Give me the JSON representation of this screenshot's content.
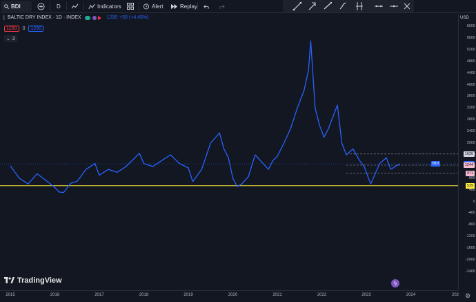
{
  "toolbar": {
    "symbol": "BDI",
    "interval": "D",
    "indicators_label": "Indicators",
    "alert_label": "Alert",
    "replay_label": "Replay"
  },
  "legend": {
    "title": "BALTIC DRY INDEX · 1D · INDEX",
    "last_value": "1290",
    "change": "+55 (+4.45%)",
    "bid": "1290",
    "spread": "0",
    "ask": "1290",
    "collapse_count": "2"
  },
  "axis": {
    "currency": "USD",
    "y_ticks": [
      "6000",
      "5600",
      "5200",
      "4800",
      "4400",
      "4000",
      "3600",
      "3200",
      "2800",
      "2400",
      "2000",
      "1600",
      "1200",
      "800",
      "400",
      "0",
      "-400",
      "-800",
      "-1200",
      "-1600",
      "-2000",
      "-2400"
    ],
    "x_ticks": [
      "2015",
      "2016",
      "2017",
      "2018",
      "2019",
      "2020",
      "2021",
      "2022",
      "2023",
      "2024",
      "202"
    ]
  },
  "price_labels": {
    "upper": "1626",
    "symbol_tag": "BDI",
    "last": "1290",
    "mid": "1244",
    "lower": "971",
    "support": "539"
  },
  "watermark": "TradingView",
  "colors": {
    "line": "#2962ff",
    "support": "#ffeb3b",
    "bg": "#131722"
  },
  "chart_data": {
    "type": "line",
    "title": "BALTIC DRY INDEX · 1D · INDEX",
    "ylim": [
      -2400,
      6000
    ],
    "series": [
      {
        "name": "BDI",
        "x": [
          2015.0,
          2015.2,
          2015.4,
          2015.6,
          2015.8,
          2016.0,
          2016.1,
          2016.2,
          2016.35,
          2016.5,
          2016.7,
          2016.9,
          2017.0,
          2017.2,
          2017.4,
          2017.6,
          2017.8,
          2017.9,
          2018.0,
          2018.2,
          2018.4,
          2018.6,
          2018.8,
          2019.0,
          2019.1,
          2019.3,
          2019.5,
          2019.7,
          2019.8,
          2019.9,
          2020.0,
          2020.1,
          2020.2,
          2020.35,
          2020.5,
          2020.65,
          2020.8,
          2020.9,
          2021.0,
          2021.15,
          2021.3,
          2021.45,
          2021.6,
          2021.7,
          2021.75,
          2021.85,
          2021.95,
          2022.05,
          2022.15,
          2022.25,
          2022.35,
          2022.45,
          2022.55,
          2022.7,
          2022.85,
          2022.95,
          2023.1,
          2023.2,
          2023.3,
          2023.45,
          2023.55,
          2023.65,
          2023.75
        ],
        "y": [
          1220,
          800,
          600,
          950,
          720,
          480,
          320,
          310,
          620,
          690,
          1100,
          1300,
          900,
          1100,
          1000,
          1200,
          1500,
          1650,
          1300,
          1200,
          1400,
          1600,
          1300,
          1150,
          680,
          1100,
          2000,
          2350,
          1800,
          1500,
          800,
          510,
          600,
          850,
          1600,
          1350,
          1100,
          1400,
          1550,
          2000,
          2500,
          3200,
          3800,
          4500,
          5500,
          3200,
          2600,
          2200,
          2500,
          2900,
          3300,
          2000,
          1600,
          1800,
          1400,
          1200,
          600,
          950,
          1300,
          1500,
          1100,
          1200,
          1290
        ]
      }
    ],
    "horizontal_levels": [
      1626,
      1244,
      971,
      539
    ]
  }
}
